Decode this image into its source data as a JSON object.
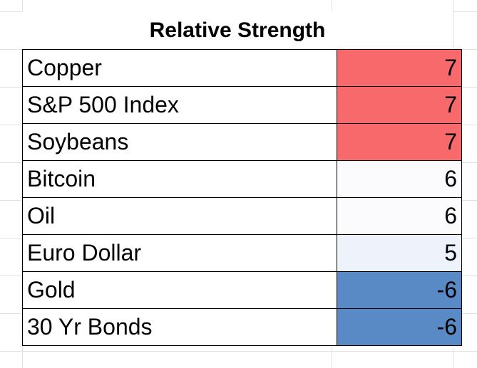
{
  "chart_data": {
    "type": "table",
    "title": "Relative Strength",
    "rows": [
      {
        "name": "Copper",
        "value": "7",
        "color": "#f8696b"
      },
      {
        "name": "S&P 500 Index",
        "value": "7",
        "color": "#f8696b"
      },
      {
        "name": "Soybeans",
        "value": "7",
        "color": "#f8696b"
      },
      {
        "name": "Bitcoin",
        "value": "6",
        "color": "#fbfbfe"
      },
      {
        "name": "Oil",
        "value": "6",
        "color": "#fbfbfe"
      },
      {
        "name": "Euro Dollar",
        "value": "5",
        "color": "#eef2fa"
      },
      {
        "name": "Gold",
        "value": "-6",
        "color": "#5a8ac6"
      },
      {
        "name": "30 Yr Bonds",
        "value": "-6",
        "color": "#5a8ac6"
      }
    ],
    "color_scale": {
      "high": "#f8696b",
      "mid": "#fcfcff",
      "low": "#5a8ac6"
    }
  }
}
